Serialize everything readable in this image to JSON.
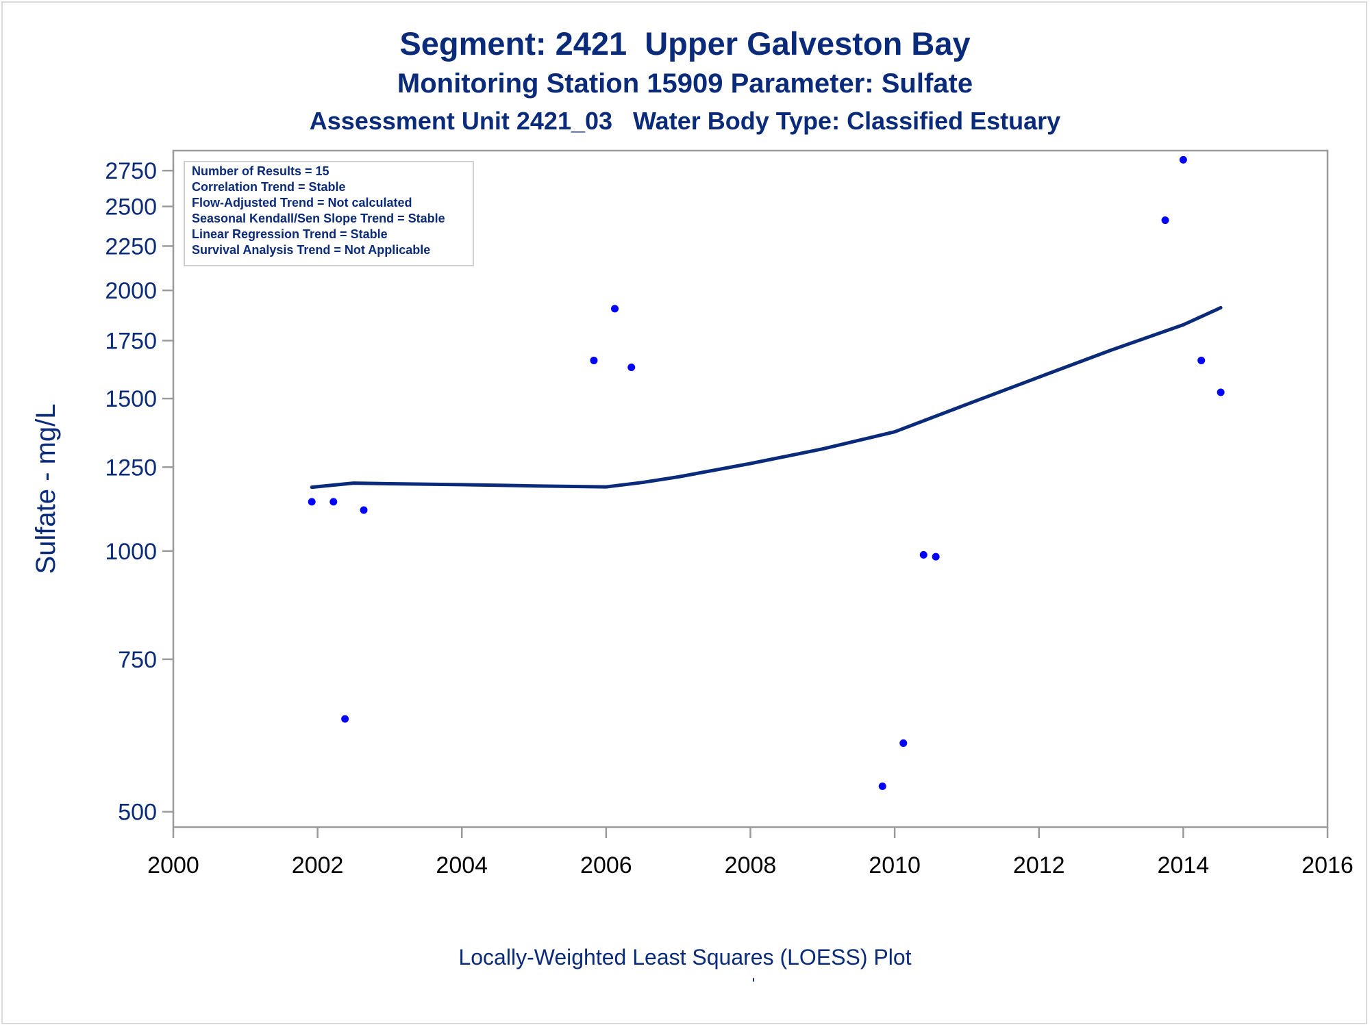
{
  "chart_data": {
    "type": "scatter",
    "title": "Segment: 2421  Upper Galveston Bay",
    "subtitle": "Monitoring Station 15909 Parameter: Sulfate",
    "subtitle2": "Assessment Unit 2421_03   Water Body Type: Classified Estuary",
    "ylabel": "Sulfate - mg/L",
    "xlabel": "",
    "y_scale": "log",
    "xlim": [
      2000,
      2016
    ],
    "ylim": [
      480,
      2900
    ],
    "x_ticks": [
      2000,
      2002,
      2004,
      2006,
      2008,
      2010,
      2012,
      2014,
      2016
    ],
    "y_ticks": [
      500,
      750,
      1000,
      1250,
      1500,
      1750,
      2000,
      2250,
      2500,
      2750
    ],
    "grid": false,
    "legend_box": {
      "placement": "top-left",
      "lines": [
        "Number of Results = 15",
        "Correlation Trend = Stable",
        "Flow-Adjusted Trend = Not calculated",
        "Seasonal Kendall/Sen Slope Trend = Stable",
        "Linear Regression Trend = Stable",
        "Survival Analysis Trend = Not Applicable"
      ]
    },
    "series": [
      {
        "kind": "points",
        "color": "#0000ff",
        "x": [
          2001.92,
          2002.22,
          2002.38,
          2002.64,
          2005.83,
          2006.12,
          2006.35,
          2009.83,
          2010.12,
          2010.4,
          2010.57,
          2013.75,
          2014.0,
          2014.25,
          2014.52
        ],
        "y": [
          1140,
          1140,
          640,
          1115,
          1660,
          1905,
          1630,
          535,
          600,
          990,
          985,
          2410,
          2830,
          1660,
          1525
        ]
      },
      {
        "kind": "loess-line",
        "color": "#0a2a7a",
        "x": [
          2001.92,
          2002.5,
          2003.0,
          2004.0,
          2005.0,
          2006.0,
          2006.5,
          2007.0,
          2008.0,
          2009.0,
          2010.0,
          2011.0,
          2012.0,
          2013.0,
          2014.0,
          2014.52
        ],
        "y": [
          1185,
          1198,
          1196,
          1193,
          1189,
          1186,
          1200,
          1218,
          1262,
          1312,
          1373,
          1477,
          1588,
          1706,
          1825,
          1910
        ]
      }
    ]
  },
  "footer": {
    "note": "Locally-Weighted Least Squares (LOESS) Plot",
    "mark": "'"
  },
  "colors": {
    "text": "#0a2a7a",
    "axis": "#9a9a9a",
    "points": "#0000ff",
    "line": "#0a2a7a"
  }
}
